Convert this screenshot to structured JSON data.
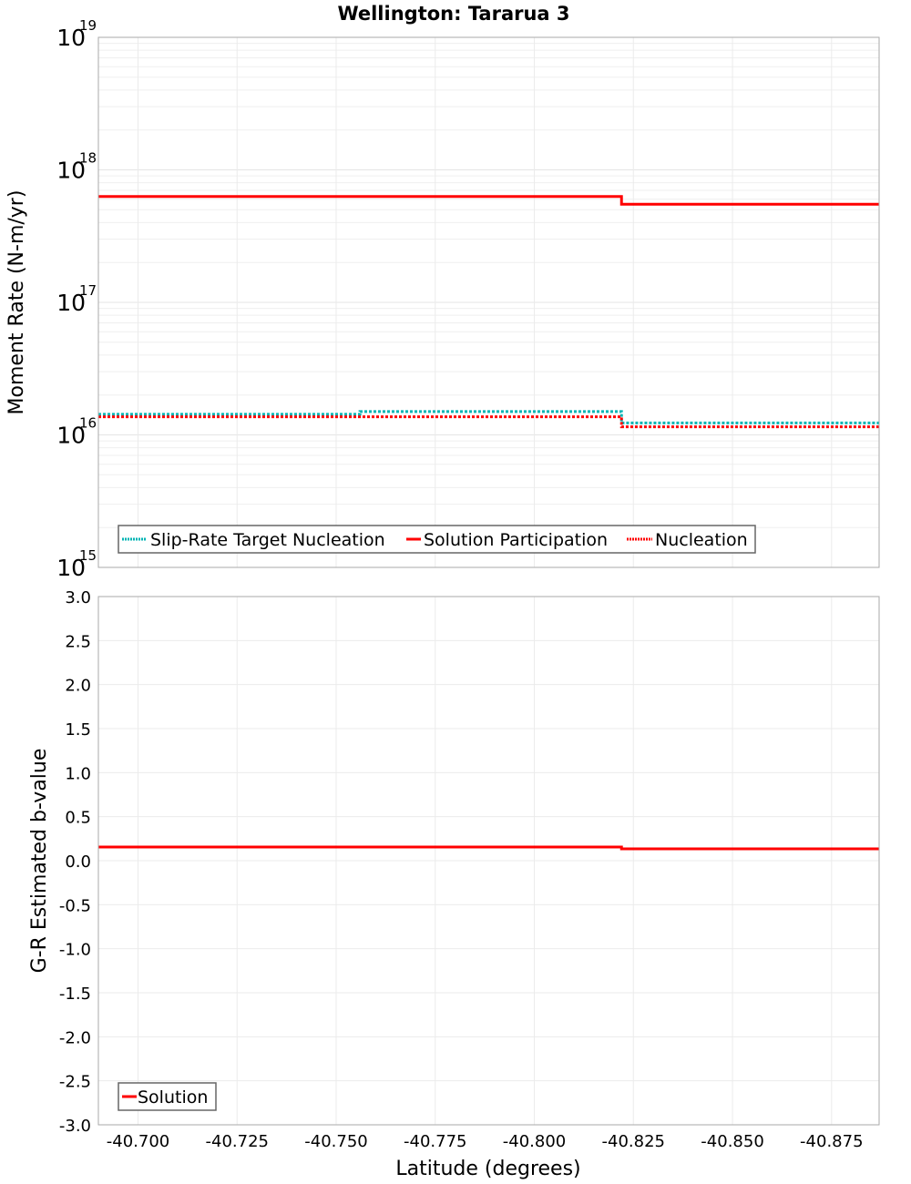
{
  "chart_data": [
    {
      "type": "line",
      "title": "Wellington: Tararua 3",
      "xlabel": "Latitude (degrees)",
      "ylabel": "Moment Rate (N-m/yr)",
      "yscale": "log",
      "ylim": [
        1000000000000000.0,
        1e+19
      ],
      "xlim": [
        -40.69,
        -40.887
      ],
      "x_ticks": [
        "-40.700",
        "-40.725",
        "-40.750",
        "-40.775",
        "-40.800",
        "-40.825",
        "-40.850",
        "-40.875"
      ],
      "y_ticks": [
        {
          "base": "10",
          "exp": "15"
        },
        {
          "base": "10",
          "exp": "16"
        },
        {
          "base": "10",
          "exp": "17"
        },
        {
          "base": "10",
          "exp": "18"
        },
        {
          "base": "10",
          "exp": "19"
        }
      ],
      "grid": true,
      "legend_position": "lower-left",
      "step_edges": [
        -40.69,
        -40.756,
        -40.822,
        -40.887
      ],
      "series": [
        {
          "name": "Slip-Rate Target Nucleation",
          "color": "#00b4b4",
          "style": "dotted",
          "values": [
            1.43e+16,
            1.5e+16,
            1.23e+16
          ]
        },
        {
          "name": "Solution Participation",
          "color": "#ff0000",
          "style": "solid",
          "values": [
            6.3e+17,
            6.3e+17,
            5.5e+17
          ]
        },
        {
          "name": "Nucleation",
          "color": "#ff0000",
          "style": "dotted",
          "values": [
            1.37e+16,
            1.37e+16,
            1.15e+16
          ]
        }
      ]
    },
    {
      "type": "line",
      "title": "",
      "xlabel": "Latitude (degrees)",
      "ylabel": "G-R Estimated b-value",
      "ylim": [
        -3.0,
        3.0
      ],
      "xlim": [
        -40.69,
        -40.887
      ],
      "x_ticks": [
        "-40.700",
        "-40.725",
        "-40.750",
        "-40.775",
        "-40.800",
        "-40.825",
        "-40.850",
        "-40.875"
      ],
      "y_ticks": [
        "3.0",
        "2.5",
        "2.0",
        "1.5",
        "1.0",
        "0.5",
        "0.0",
        "-0.5",
        "-1.0",
        "-1.5",
        "-2.0",
        "-2.5",
        "-3.0"
      ],
      "grid": true,
      "legend_position": "lower-left",
      "step_edges": [
        -40.69,
        -40.756,
        -40.822,
        -40.887
      ],
      "series": [
        {
          "name": "Solution",
          "color": "#ff0000",
          "style": "solid",
          "values": [
            0.155,
            0.155,
            0.135
          ]
        }
      ]
    }
  ]
}
